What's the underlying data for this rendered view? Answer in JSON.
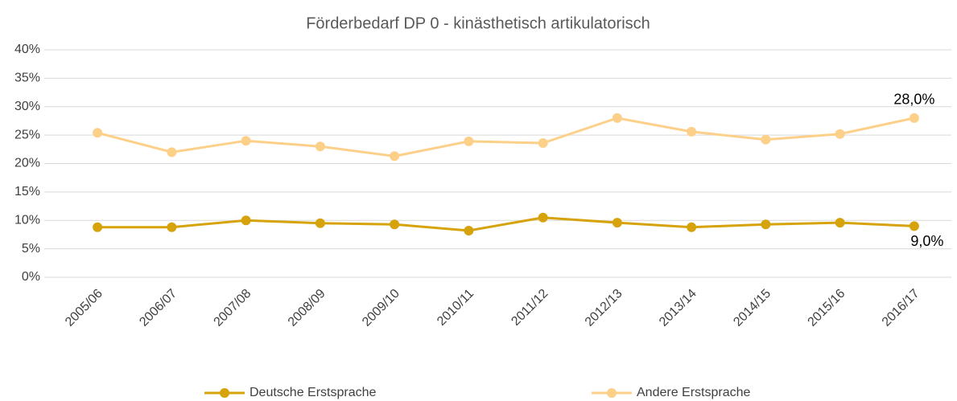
{
  "chart_data": {
    "type": "line",
    "title": "Förderbedarf DP 0 - kinästhetisch artikulatorisch",
    "categories": [
      "2005/06",
      "2006/07",
      "2007/08",
      "2008/09",
      "2009/10",
      "2010/11",
      "2011/12",
      "2012/13",
      "2013/14",
      "2014/15",
      "2015/16",
      "2016/17"
    ],
    "series": [
      {
        "name": "Deutsche Erstsprache",
        "color": "#d6a30c",
        "values": [
          8.8,
          8.8,
          10.0,
          9.5,
          9.3,
          8.2,
          10.5,
          9.6,
          8.8,
          9.3,
          9.6,
          9.0
        ],
        "value_labels": [
          null,
          null,
          null,
          null,
          null,
          null,
          null,
          null,
          null,
          null,
          null,
          "9,0%"
        ]
      },
      {
        "name": "Andere Erstsprache",
        "color": "#fdd08a",
        "values": [
          25.4,
          22.0,
          24.0,
          23.0,
          21.3,
          23.9,
          23.6,
          28.0,
          25.6,
          24.2,
          25.2,
          28.0
        ],
        "value_labels": [
          null,
          null,
          null,
          null,
          null,
          null,
          null,
          null,
          null,
          null,
          null,
          "28,0%"
        ]
      }
    ],
    "ylim": [
      0,
      40
    ],
    "yticks": [
      {
        "value": 0,
        "label": "0%"
      },
      {
        "value": 5,
        "label": "5%"
      },
      {
        "value": 10,
        "label": "10%"
      },
      {
        "value": 15,
        "label": "15%"
      },
      {
        "value": 20,
        "label": "20%"
      },
      {
        "value": 25,
        "label": "25%"
      },
      {
        "value": 30,
        "label": "30%"
      },
      {
        "value": 35,
        "label": "35%"
      },
      {
        "value": 40,
        "label": "40%"
      }
    ],
    "grid": true,
    "legend": "bottom"
  }
}
